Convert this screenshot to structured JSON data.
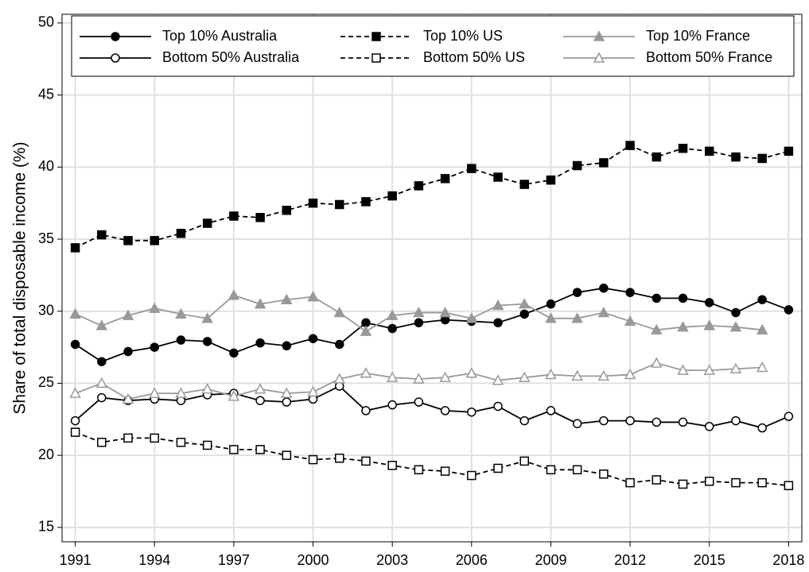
{
  "chart_data": {
    "type": "line",
    "y_label": "Share of total disposable income (%)",
    "x": [
      1991,
      1992,
      1993,
      1994,
      1995,
      1996,
      1997,
      1998,
      1999,
      2000,
      2001,
      2002,
      2003,
      2004,
      2005,
      2006,
      2007,
      2008,
      2009,
      2010,
      2011,
      2012,
      2013,
      2014,
      2015,
      2016,
      2017,
      2018
    ],
    "xlim": [
      1990.5,
      2018.5
    ],
    "xticks": [
      1991,
      1994,
      1997,
      2000,
      2003,
      2006,
      2009,
      2012,
      2015,
      2018
    ],
    "ylim": [
      14,
      50.6
    ],
    "yticks": [
      15,
      20,
      25,
      30,
      35,
      40,
      45,
      50
    ],
    "grid": true,
    "legend": "top",
    "series": [
      {
        "name": "Top 10% Australia",
        "color": "#000000",
        "marker": "circle",
        "filled": true,
        "dashed": false,
        "values": [
          27.7,
          26.5,
          27.2,
          27.5,
          28.0,
          27.9,
          27.1,
          27.8,
          27.6,
          28.1,
          27.7,
          29.2,
          28.8,
          29.2,
          29.4,
          29.3,
          29.2,
          29.8,
          30.5,
          31.3,
          31.6,
          31.3,
          30.9,
          30.9,
          30.6,
          29.9,
          30.8,
          30.1
        ]
      },
      {
        "name": "Bottom 50% Australia",
        "color": "#000000",
        "marker": "circle",
        "filled": false,
        "dashed": false,
        "values": [
          22.4,
          24.0,
          23.8,
          23.9,
          23.8,
          24.2,
          24.3,
          23.8,
          23.7,
          23.9,
          24.8,
          23.1,
          23.5,
          23.7,
          23.1,
          23.0,
          23.4,
          22.4,
          23.1,
          22.2,
          22.4,
          22.4,
          22.3,
          22.3,
          22.0,
          22.4,
          21.9,
          22.7
        ]
      },
      {
        "name": "Top 10% US",
        "color": "#000000",
        "marker": "square",
        "filled": true,
        "dashed": true,
        "values": [
          34.4,
          35.3,
          34.9,
          34.9,
          35.4,
          36.1,
          36.6,
          36.5,
          37.0,
          37.5,
          37.4,
          37.6,
          38.0,
          38.7,
          39.2,
          39.9,
          39.3,
          38.8,
          39.1,
          40.1,
          40.3,
          41.5,
          40.7,
          41.3,
          41.1,
          40.7,
          40.6,
          41.1
        ]
      },
      {
        "name": "Bottom 50% US",
        "color": "#000000",
        "marker": "square",
        "filled": false,
        "dashed": true,
        "values": [
          21.6,
          20.9,
          21.2,
          21.2,
          20.9,
          20.7,
          20.4,
          20.4,
          20.0,
          19.7,
          19.8,
          19.6,
          19.3,
          19.0,
          18.9,
          18.6,
          19.1,
          19.6,
          19.0,
          19.0,
          18.7,
          18.1,
          18.3,
          18.0,
          18.2,
          18.1,
          18.1,
          17.9
        ]
      },
      {
        "name": "Top 10% France",
        "color": "#999999",
        "marker": "triangle",
        "filled": true,
        "dashed": false,
        "values": [
          29.8,
          29.0,
          29.7,
          30.2,
          29.8,
          29.5,
          31.1,
          30.5,
          30.8,
          31.0,
          29.9,
          28.6,
          29.7,
          29.9,
          29.9,
          29.5,
          30.4,
          30.5,
          29.5,
          29.5,
          29.9,
          29.3,
          28.7,
          28.9,
          29.0,
          28.9,
          28.7,
          null
        ]
      },
      {
        "name": "Bottom 50% France",
        "color": "#999999",
        "marker": "triangle",
        "filled": false,
        "dashed": false,
        "values": [
          24.3,
          25.0,
          23.9,
          24.3,
          24.3,
          24.6,
          24.1,
          24.6,
          24.3,
          24.4,
          25.3,
          25.7,
          25.4,
          25.3,
          25.4,
          25.7,
          25.2,
          25.4,
          25.6,
          25.5,
          25.5,
          25.6,
          26.4,
          25.9,
          25.9,
          26.0,
          26.1,
          null
        ]
      }
    ]
  }
}
